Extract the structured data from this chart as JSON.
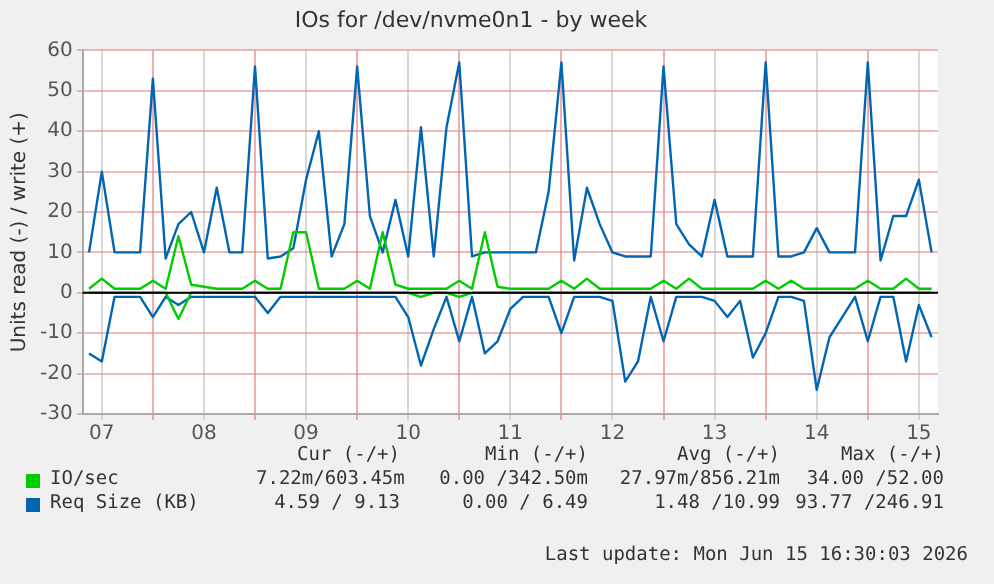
{
  "chart_data": {
    "type": "line",
    "title": "IOs for /dev/nvme0n1 - by week",
    "ylabel": "Units read (-) / write (+)",
    "x": [
      "2026-06-07T09:00",
      "2026-06-07T12:00",
      "2026-06-07T15:00",
      "2026-06-07T18:00",
      "2026-06-07T21:00",
      "2026-06-08T00:00",
      "2026-06-08T03:00",
      "2026-06-08T06:00",
      "2026-06-08T09:00",
      "2026-06-08T12:00",
      "2026-06-08T15:00",
      "2026-06-08T18:00",
      "2026-06-08T21:00",
      "2026-06-09T00:00",
      "2026-06-09T03:00",
      "2026-06-09T06:00",
      "2026-06-09T09:00",
      "2026-06-09T12:00",
      "2026-06-09T15:00",
      "2026-06-09T18:00",
      "2026-06-09T21:00",
      "2026-06-10T00:00",
      "2026-06-10T03:00",
      "2026-06-10T06:00",
      "2026-06-10T09:00",
      "2026-06-10T12:00",
      "2026-06-10T15:00",
      "2026-06-10T18:00",
      "2026-06-10T21:00",
      "2026-06-11T00:00",
      "2026-06-11T03:00",
      "2026-06-11T06:00",
      "2026-06-11T09:00",
      "2026-06-11T12:00",
      "2026-06-11T15:00",
      "2026-06-11T18:00",
      "2026-06-11T21:00",
      "2026-06-12T00:00",
      "2026-06-12T03:00",
      "2026-06-12T06:00",
      "2026-06-12T09:00",
      "2026-06-12T12:00",
      "2026-06-12T15:00",
      "2026-06-12T18:00",
      "2026-06-12T21:00",
      "2026-06-13T00:00",
      "2026-06-13T03:00",
      "2026-06-13T06:00",
      "2026-06-13T09:00",
      "2026-06-13T12:00",
      "2026-06-13T15:00",
      "2026-06-13T18:00",
      "2026-06-13T21:00",
      "2026-06-14T00:00",
      "2026-06-14T03:00",
      "2026-06-14T06:00",
      "2026-06-14T09:00",
      "2026-06-14T12:00",
      "2026-06-14T15:00",
      "2026-06-14T18:00",
      "2026-06-14T21:00",
      "2026-06-15T00:00",
      "2026-06-15T03:00",
      "2026-06-15T06:00",
      "2026-06-15T09:00",
      "2026-06-15T12:00",
      "2026-06-15T15:00"
    ],
    "series": [
      {
        "name": "IO/sec",
        "color": "#00cc00",
        "values": [
          1,
          3.5,
          1,
          1,
          1,
          3,
          1,
          14,
          2,
          1.5,
          1,
          1,
          1,
          3,
          1,
          1,
          15,
          15,
          1,
          1,
          1,
          3,
          1,
          15,
          2,
          1,
          1,
          1,
          1,
          3,
          1,
          15,
          1.5,
          1,
          1,
          1,
          1,
          3,
          1,
          3.5,
          1,
          1,
          1,
          1,
          1,
          3,
          1,
          3.5,
          1,
          1,
          1,
          1,
          1,
          3,
          1,
          3,
          1,
          1,
          1,
          1,
          1,
          3,
          1,
          1,
          3.5,
          1,
          1
        ]
      },
      {
        "color": "#00cc00",
        "values": [
          0,
          0,
          0,
          0,
          0,
          0,
          0,
          -6.5,
          0,
          0,
          0,
          0,
          0,
          0,
          0,
          0,
          0,
          0,
          0,
          0,
          0,
          0,
          0,
          0,
          0,
          0,
          -1,
          0,
          0,
          -1,
          0,
          0,
          0,
          0,
          0,
          0,
          0,
          0,
          0,
          0,
          0,
          0,
          0,
          0,
          0,
          0,
          0,
          0,
          0,
          0,
          0,
          0,
          0,
          0,
          0,
          0,
          0,
          0,
          0,
          0,
          0,
          0,
          0,
          0,
          0,
          0,
          0
        ]
      },
      {
        "name": "Req Size (KB)",
        "color": "#0066b3",
        "values": [
          10,
          30,
          10,
          10,
          10,
          53,
          8.5,
          17,
          20,
          10,
          26,
          10,
          10,
          56,
          8.5,
          9,
          11,
          28,
          40,
          9,
          17,
          56,
          19,
          10,
          23,
          9,
          41,
          9,
          41,
          57,
          9,
          10,
          10,
          10,
          10,
          10,
          25,
          57,
          8,
          26,
          17,
          10,
          9,
          9,
          9,
          56,
          17,
          12,
          9,
          23,
          9,
          9,
          9,
          57,
          9,
          9,
          10,
          16,
          10,
          10,
          10,
          57,
          8,
          19,
          19,
          28,
          10
        ]
      },
      {
        "color": "#0066b3",
        "values": [
          -15,
          -17,
          -1,
          -1,
          -1,
          -6,
          -1,
          -3,
          -1,
          -1,
          -1,
          -1,
          -1,
          -1,
          -5,
          -1,
          -1,
          -1,
          -1,
          -1,
          -1,
          -1,
          -1,
          -1,
          -1,
          -6,
          -18,
          -9,
          -1,
          -12,
          -1,
          -15,
          -12,
          -4,
          -1,
          -1,
          -1,
          -10,
          -1,
          -1,
          -1,
          -2,
          -22,
          -17,
          -1,
          -12,
          -1,
          -1,
          -1,
          -2,
          -6,
          -2,
          -16,
          -10,
          -1,
          -1,
          -2,
          -24,
          -11,
          -6,
          -1,
          -12,
          -1,
          -1,
          -17,
          -3,
          -11
        ]
      }
    ],
    "xlim": [
      "2026-06-07T07:30",
      "2026-06-15T16:30"
    ],
    "xticks": [
      {
        "value": "2026-06-07T12:00",
        "label": "07"
      },
      {
        "value": "2026-06-08T00:00",
        "label": null
      },
      {
        "value": "2026-06-08T12:00",
        "label": "08"
      },
      {
        "value": "2026-06-09T00:00",
        "label": null
      },
      {
        "value": "2026-06-09T12:00",
        "label": "09"
      },
      {
        "value": "2026-06-10T00:00",
        "label": null
      },
      {
        "value": "2026-06-10T12:00",
        "label": "10"
      },
      {
        "value": "2026-06-11T00:00",
        "label": null
      },
      {
        "value": "2026-06-11T12:00",
        "label": "11"
      },
      {
        "value": "2026-06-12T00:00",
        "label": null
      },
      {
        "value": "2026-06-12T12:00",
        "label": "12"
      },
      {
        "value": "2026-06-13T00:00",
        "label": null
      },
      {
        "value": "2026-06-13T12:00",
        "label": "13"
      },
      {
        "value": "2026-06-14T00:00",
        "label": null
      },
      {
        "value": "2026-06-14T12:00",
        "label": "14"
      },
      {
        "value": "2026-06-15T00:00",
        "label": null
      },
      {
        "value": "2026-06-15T12:00",
        "label": "15"
      }
    ],
    "ylim": [
      -30,
      60
    ],
    "yticks": [
      -30,
      -20,
      -10,
      0,
      10,
      20,
      30,
      40,
      50,
      60
    ],
    "grid": true,
    "legend": "bottom",
    "marker": "none",
    "line_style": "solid",
    "ref_lines": [
      {
        "axis": "y",
        "value": 0,
        "color": "#000000"
      }
    ],
    "annotations": [
      "Cur (-/+)",
      "Min (-/+)",
      "Avg (-/+)",
      "Max (-/+)",
      "7.22m/603.45m",
      "0.00 /342.50m",
      "27.97m/856.21m",
      "34.00 /52.00",
      "4.59 / 9.13",
      "0.00 / 6.49",
      "1.48 /10.99",
      "93.77 /246.91",
      "Last update: Mon Jun 15 16:30:03 2026"
    ]
  }
}
